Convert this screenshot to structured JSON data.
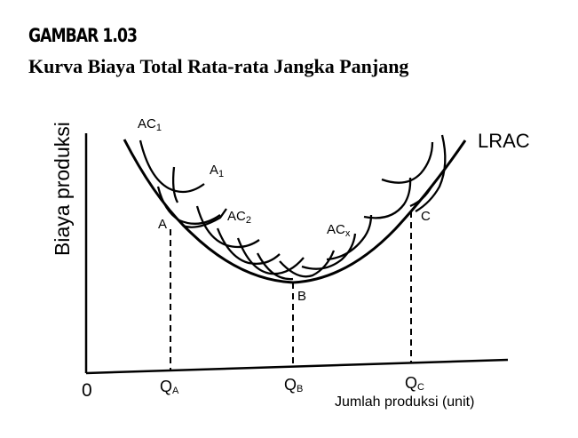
{
  "figure": {
    "number": "GAMBAR 1.03",
    "title": "Kurva Biaya Total Rata-rata Jangka Panjang"
  },
  "axes": {
    "y_title": "Biaya produksi",
    "x_title": "Jumlah produksi (unit)",
    "origin": "0"
  },
  "curves": {
    "envelope": "LRAC",
    "short_run": [
      {
        "main": "AC",
        "sub": "1"
      },
      {
        "main": "A",
        "sub": "1"
      },
      {
        "main": "AC",
        "sub": "2"
      },
      {
        "main": "AC",
        "sub": "x"
      }
    ]
  },
  "points": {
    "A": "A",
    "B": "B",
    "C": "C"
  },
  "quantities": [
    {
      "main": "Q",
      "sub": "A"
    },
    {
      "main": "Q",
      "sub": "B"
    },
    {
      "main": "Q",
      "sub": "C"
    }
  ]
}
